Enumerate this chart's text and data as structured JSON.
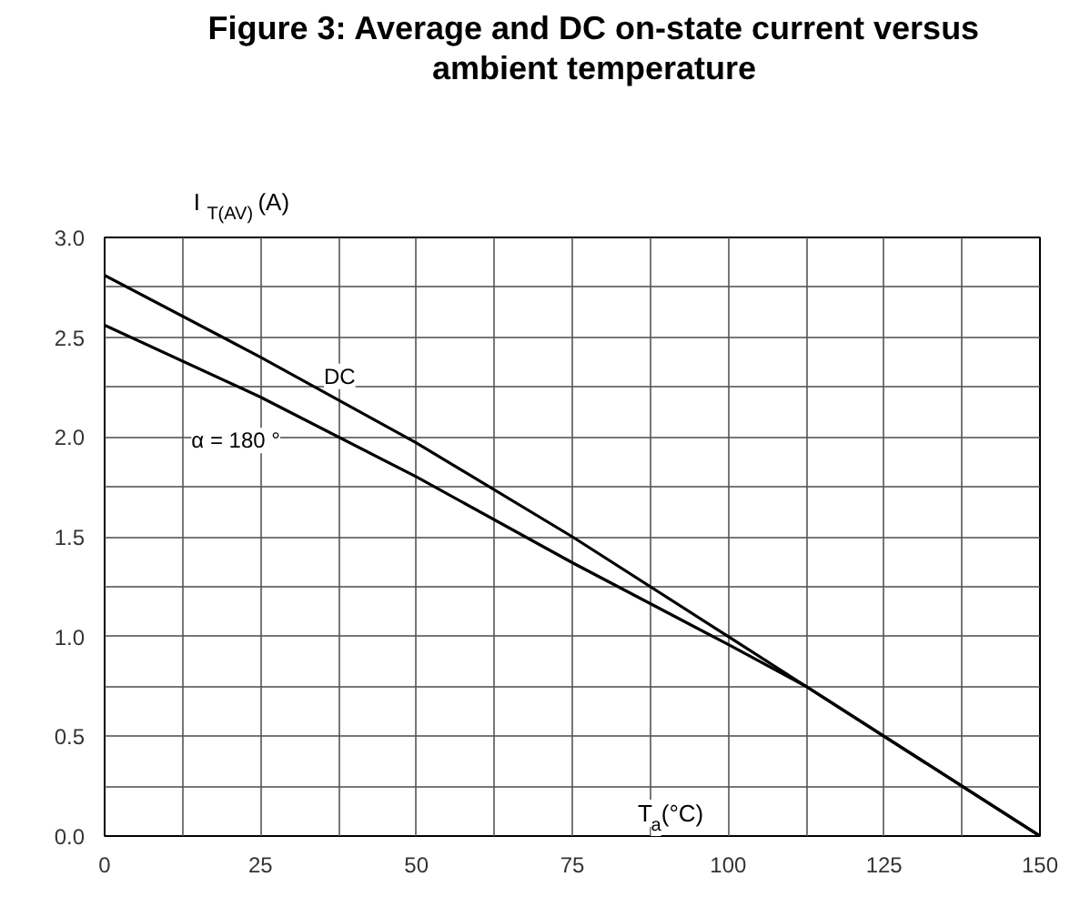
{
  "chart_data": {
    "type": "line",
    "title": "Figure 3: Average and DC on-state current versus ambient temperature",
    "xlabel": "T$_{a}$(°C)",
    "ylabel": "I$_{T(AV)}$(A)",
    "x": [
      0,
      25,
      50,
      75,
      100,
      112.5,
      125,
      137.5,
      150
    ],
    "series": [
      {
        "name": "DC",
        "color": "#000000",
        "values": [
          2.81,
          2.4,
          1.97,
          1.5,
          1.0,
          0.75,
          0.5,
          0.25,
          0
        ]
      },
      {
        "name": "α = 180 °",
        "color": "#000000",
        "values": [
          2.56,
          2.2,
          1.8,
          1.37,
          0.96,
          0.75,
          0.5,
          0.25,
          0
        ]
      }
    ],
    "xlim": [
      0,
      150
    ],
    "ylim": [
      0,
      3.0
    ],
    "xticks": [
      0,
      {
        "value": 12.5,
        "label": null
      },
      25,
      {
        "value": 37.5,
        "label": null
      },
      50,
      {
        "value": 62.5,
        "label": null
      },
      75,
      {
        "value": 87.5,
        "label": null
      },
      100,
      {
        "value": 112.5,
        "label": null
      },
      125,
      {
        "value": 137.5,
        "label": null
      },
      150
    ],
    "yticks": [
      "0.0",
      {
        "value": 0.25,
        "label": null
      },
      {
        "value": 0.5,
        "label": "0.5"
      },
      {
        "value": 0.75,
        "label": null
      },
      {
        "value": 1.0,
        "label": "1.0"
      },
      {
        "value": 1.25,
        "label": null
      },
      {
        "value": 1.5,
        "label": "1.5"
      },
      {
        "value": 1.75,
        "label": null
      },
      {
        "value": 2.0,
        "label": "2.0"
      },
      {
        "value": 2.25,
        "label": null
      },
      {
        "value": 2.5,
        "label": "2.5"
      },
      {
        "value": 2.75,
        "label": null
      },
      {
        "value": 3.0,
        "label": "3.0"
      }
    ],
    "grid": true,
    "legend": false,
    "marker": "none",
    "line_style": "solid"
  }
}
